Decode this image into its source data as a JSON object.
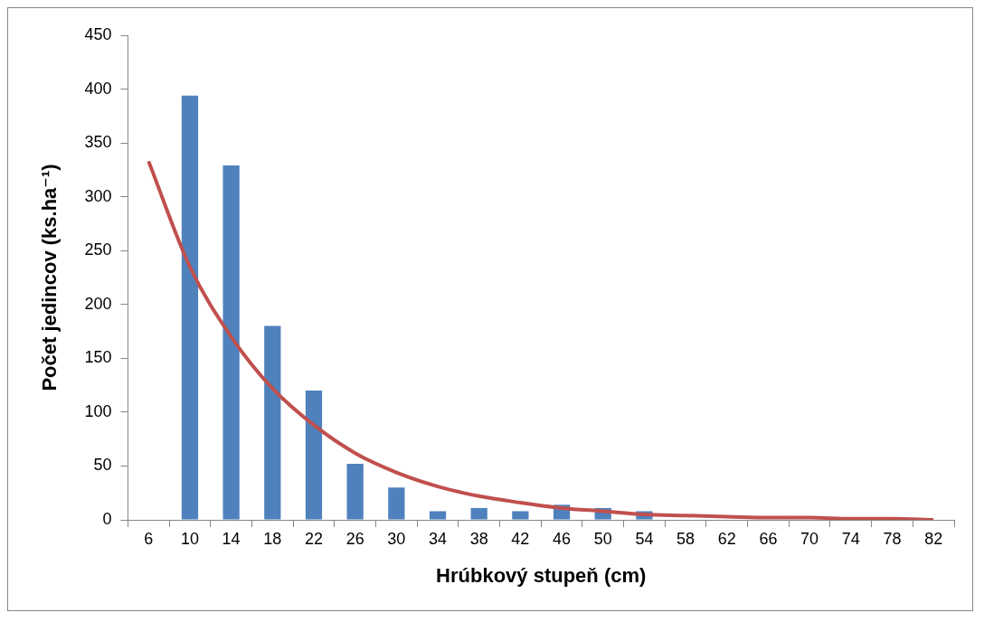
{
  "chart_data": {
    "type": "bar",
    "xlabel": "Hrúbkový stupeň (cm)",
    "ylabel": "Počet jedincov (ks.ha⁻¹)",
    "categories": [
      "6",
      "10",
      "14",
      "18",
      "22",
      "26",
      "30",
      "34",
      "38",
      "42",
      "46",
      "50",
      "54",
      "58",
      "62",
      "66",
      "70",
      "74",
      "78",
      "82"
    ],
    "series": [
      {
        "color": "#4f81bd",
        "values": [
          null,
          394,
          329,
          180,
          120,
          52,
          30,
          8,
          11,
          8,
          14,
          11,
          8,
          null,
          null,
          null,
          null,
          null,
          null,
          null
        ]
      },
      {
        "type": "line",
        "color": "#c0504d",
        "values": [
          333,
          235,
          170,
          122,
          88,
          62,
          44,
          31,
          22,
          16,
          11,
          8,
          5,
          4,
          3,
          2,
          2,
          1,
          1,
          0
        ]
      }
    ],
    "ylim": [
      0,
      450
    ],
    "yticks": [
      0,
      50,
      100,
      150,
      200,
      250,
      300,
      350,
      400,
      450
    ],
    "grid": false,
    "legend": false,
    "marker": "none"
  }
}
